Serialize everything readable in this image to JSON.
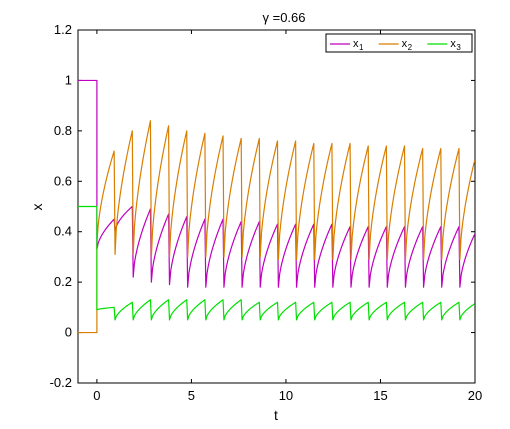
{
  "chart_data": {
    "type": "line",
    "title": "γ =0.66",
    "xlabel": "t",
    "ylabel": "x",
    "xlim": [
      -1,
      20
    ],
    "ylim": [
      -0.2,
      1.2
    ],
    "xticks": [
      0,
      5,
      10,
      15,
      20
    ],
    "xtick_labels": [
      "0",
      "5",
      "10",
      "15",
      "20"
    ],
    "yticks": [
      -0.2,
      0,
      0.2,
      0.4,
      0.6,
      0.8,
      1,
      1.2
    ],
    "ytick_labels": [
      "-0.2",
      "0",
      "0.2",
      "0.4",
      "0.6",
      "0.8",
      "1",
      "1.2"
    ],
    "grid": false,
    "legend": {
      "position": "top-right",
      "entries": [
        {
          "name": "x",
          "sub": "1",
          "color": "#bf00bf"
        },
        {
          "name": "x",
          "sub": "2",
          "color": "#d97e00"
        },
        {
          "name": "x",
          "sub": "3",
          "color": "#00e000"
        }
      ]
    },
    "series": [
      {
        "name": "x1",
        "color": "#bf00bf",
        "initial": {
          "x": [
            -1,
            0
          ],
          "y": [
            1.0,
            1.0
          ]
        },
        "spikes": {
          "start": 0.0,
          "period": 0.96,
          "count": 21,
          "low": [
            0.33,
            0.4,
            0.22,
            0.2,
            0.19,
            0.18,
            0.18,
            0.18,
            0.18,
            0.18,
            0.18,
            0.18,
            0.18,
            0.18,
            0.18,
            0.18,
            0.18,
            0.18,
            0.18,
            0.18,
            0.18
          ],
          "high": [
            0.45,
            0.5,
            0.49,
            0.47,
            0.46,
            0.45,
            0.45,
            0.44,
            0.44,
            0.43,
            0.43,
            0.43,
            0.43,
            0.42,
            0.42,
            0.42,
            0.42,
            0.42,
            0.42,
            0.42,
            0.41
          ]
        }
      },
      {
        "name": "x2",
        "color": "#d97e00",
        "initial": {
          "x": [
            -1,
            0
          ],
          "y": [
            0.0,
            0.0
          ]
        },
        "spikes": {
          "start": 0.0,
          "period": 0.96,
          "count": 21,
          "low": [
            0.35,
            0.31,
            0.31,
            0.3,
            0.3,
            0.3,
            0.3,
            0.3,
            0.3,
            0.3,
            0.29,
            0.29,
            0.29,
            0.29,
            0.29,
            0.29,
            0.29,
            0.29,
            0.29,
            0.29,
            0.29
          ],
          "high": [
            0.72,
            0.8,
            0.84,
            0.82,
            0.8,
            0.79,
            0.78,
            0.77,
            0.77,
            0.76,
            0.76,
            0.75,
            0.75,
            0.75,
            0.74,
            0.74,
            0.74,
            0.73,
            0.73,
            0.73,
            0.72
          ]
        }
      },
      {
        "name": "x3",
        "color": "#00e000",
        "initial": {
          "x": [
            -1,
            0
          ],
          "y": [
            0.5,
            0.5
          ]
        },
        "spikes": {
          "start": 0.0,
          "period": 0.96,
          "count": 21,
          "low": [
            0.09,
            0.05,
            0.05,
            0.05,
            0.05,
            0.05,
            0.05,
            0.05,
            0.05,
            0.05,
            0.05,
            0.05,
            0.05,
            0.05,
            0.05,
            0.05,
            0.05,
            0.05,
            0.05,
            0.05,
            0.05
          ],
          "high": [
            0.1,
            0.12,
            0.13,
            0.13,
            0.13,
            0.13,
            0.13,
            0.13,
            0.12,
            0.12,
            0.12,
            0.12,
            0.12,
            0.12,
            0.12,
            0.12,
            0.12,
            0.12,
            0.12,
            0.12,
            0.12
          ]
        }
      }
    ]
  }
}
